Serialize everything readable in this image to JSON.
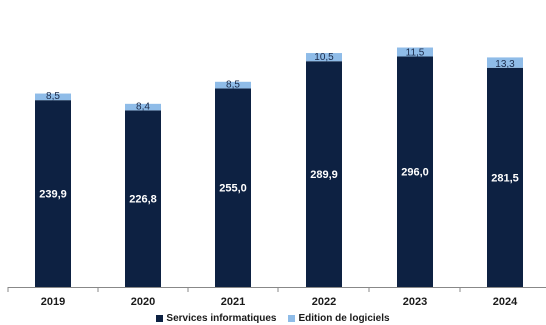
{
  "chart_data": {
    "type": "bar",
    "stacked": true,
    "categories": [
      "2019",
      "2020",
      "2021",
      "2022",
      "2023",
      "2024"
    ],
    "series": [
      {
        "name": "Services informatiques",
        "color": "#0d2142",
        "values": [
          239.9,
          226.8,
          255.0,
          289.9,
          296.0,
          281.5
        ],
        "labels": [
          "239,9",
          "226,8",
          "255,0",
          "289,9",
          "296,0",
          "281,5"
        ]
      },
      {
        "name": "Edition de logiciels",
        "color": "#8fbce8",
        "values": [
          8.5,
          8.4,
          8.5,
          10.5,
          11.5,
          13.3
        ],
        "labels": [
          "8,5",
          "8,4",
          "8,5",
          "10,5",
          "11,5",
          "13,3"
        ]
      }
    ],
    "ylim": [
      0,
      330
    ],
    "grid": false,
    "legend_position": "bottom"
  }
}
